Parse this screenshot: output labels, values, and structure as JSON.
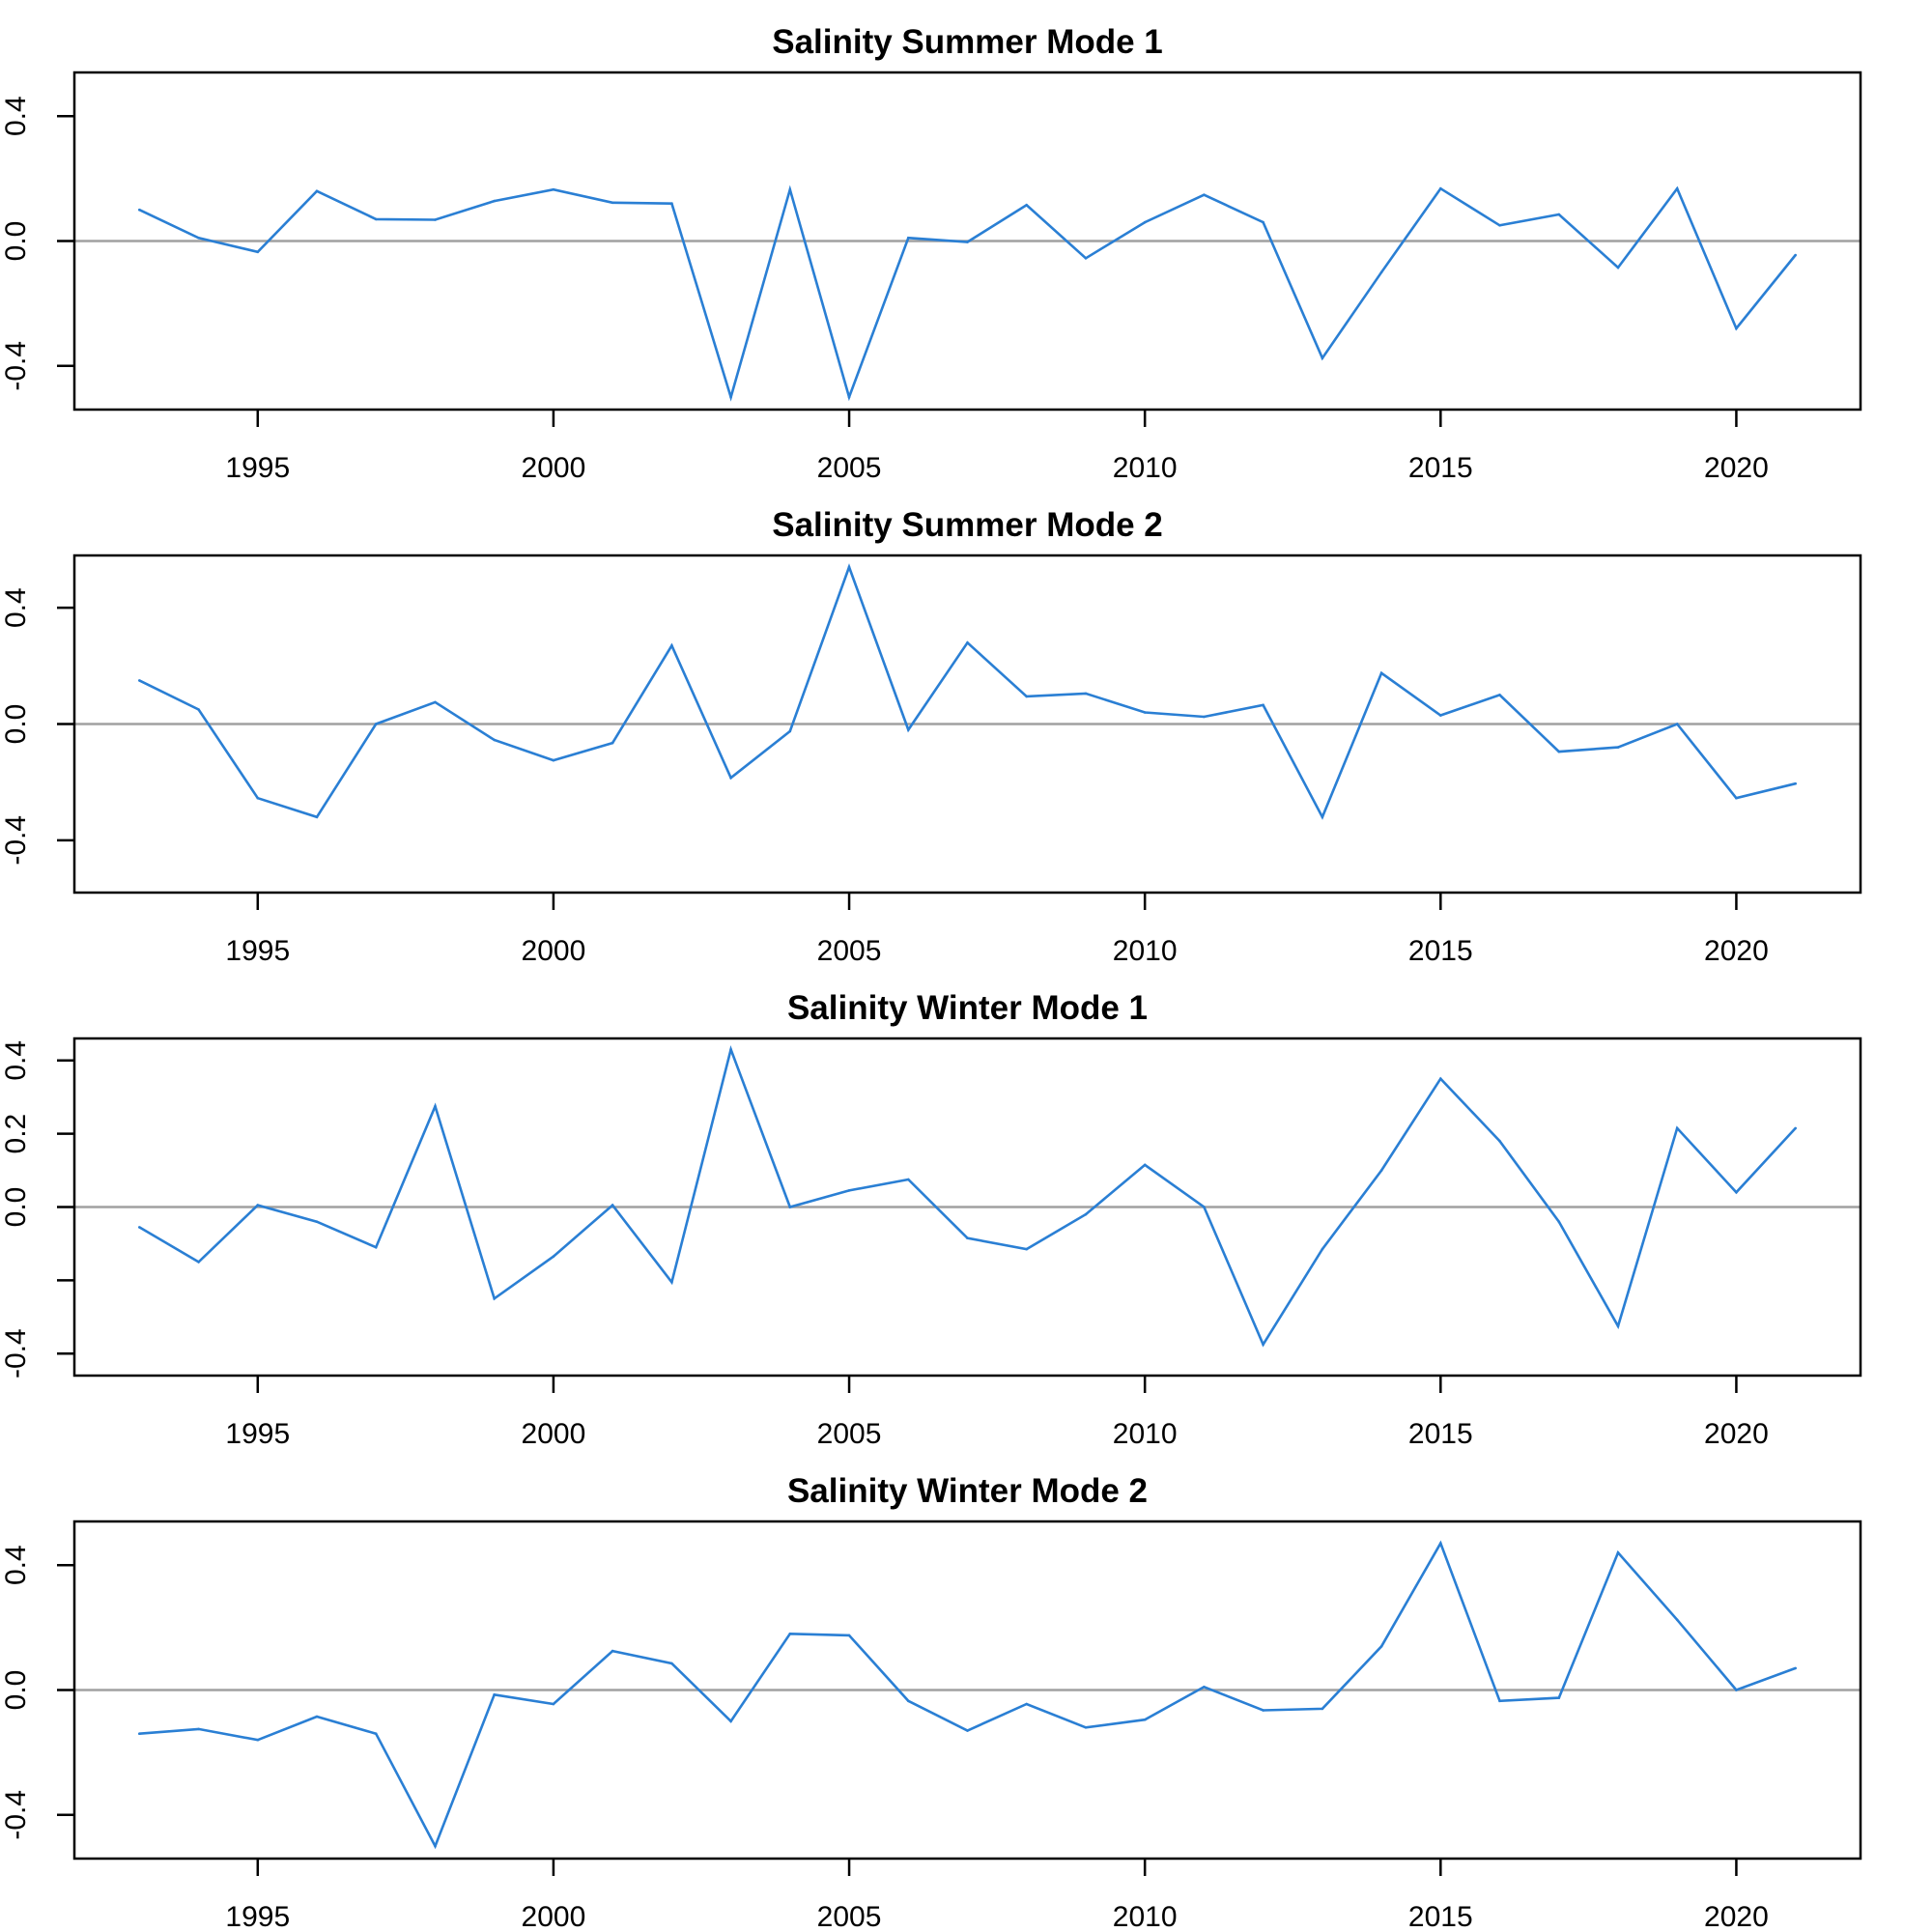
{
  "colors": {
    "line": "#2a7fd4",
    "zero_line": "#a0a0a0",
    "frame": "#000000",
    "text": "#000000",
    "background": "#ffffff"
  },
  "chart_data": [
    {
      "type": "line",
      "title": "Salinity Summer Mode 1",
      "xlabel": "",
      "ylabel": "",
      "xlim": [
        1991.9,
        2022.1
      ],
      "ylim": [
        -0.54,
        0.54
      ],
      "x_ticks": [
        1995,
        2000,
        2005,
        2010,
        2015,
        2020
      ],
      "y_ticks": [
        -0.4,
        0.0,
        0.4
      ],
      "y_tick_labels": [
        "-0.4",
        "0.0",
        "0.4"
      ],
      "reference_line": 0,
      "grid": false,
      "legend": "none",
      "x": [
        1993,
        1994,
        1995,
        1996,
        1997,
        1998,
        1999,
        2000,
        2001,
        2002,
        2003,
        2004,
        2005,
        2006,
        2007,
        2008,
        2009,
        2010,
        2011,
        2012,
        2013,
        2014,
        2015,
        2016,
        2017,
        2018,
        2019,
        2020,
        2021
      ],
      "series": [
        {
          "values": [
            0.1,
            0.01,
            -0.035,
            0.16,
            0.07,
            0.068,
            0.128,
            0.165,
            0.123,
            0.12,
            -0.5,
            0.165,
            -0.5,
            0.01,
            -0.003,
            0.115,
            -0.055,
            0.06,
            0.148,
            0.06,
            -0.375,
            -0.1,
            0.168,
            0.05,
            0.085,
            -0.085,
            0.168,
            -0.28,
            -0.045
          ]
        }
      ]
    },
    {
      "type": "line",
      "title": "Salinity Summer Mode 2",
      "xlabel": "",
      "ylabel": "",
      "xlim": [
        1991.9,
        2022.1
      ],
      "ylim": [
        -0.58,
        0.58
      ],
      "x_ticks": [
        1995,
        2000,
        2005,
        2010,
        2015,
        2020
      ],
      "y_ticks": [
        -0.4,
        0.0,
        0.4
      ],
      "y_tick_labels": [
        "-0.4",
        "0.0",
        "0.4"
      ],
      "reference_line": 0,
      "grid": false,
      "legend": "none",
      "x": [
        1993,
        1994,
        1995,
        1996,
        1997,
        1998,
        1999,
        2000,
        2001,
        2002,
        2003,
        2004,
        2005,
        2006,
        2007,
        2008,
        2009,
        2010,
        2011,
        2012,
        2013,
        2014,
        2015,
        2016,
        2017,
        2018,
        2019,
        2020,
        2021
      ],
      "series": [
        {
          "values": [
            0.15,
            0.05,
            -0.255,
            -0.32,
            0.0,
            0.075,
            -0.055,
            -0.125,
            -0.065,
            0.27,
            -0.185,
            -0.025,
            0.54,
            -0.02,
            0.28,
            0.095,
            0.105,
            0.04,
            0.025,
            0.065,
            -0.32,
            0.175,
            0.03,
            0.1,
            -0.095,
            -0.08,
            0.0,
            -0.255,
            -0.205
          ]
        }
      ]
    },
    {
      "type": "line",
      "title": "Salinity Winter Mode 1",
      "xlabel": "",
      "ylabel": "",
      "xlim": [
        1991.9,
        2022.1
      ],
      "ylim": [
        -0.46,
        0.46
      ],
      "x_ticks": [
        1995,
        2000,
        2005,
        2010,
        2015,
        2020
      ],
      "y_ticks": [
        -0.4,
        -0.2,
        0.0,
        0.2,
        0.4
      ],
      "y_tick_labels": [
        "-0.4",
        "",
        "0.0",
        "0.2",
        "0.4"
      ],
      "reference_line": 0,
      "grid": false,
      "legend": "none",
      "x": [
        1993,
        1994,
        1995,
        1996,
        1997,
        1998,
        1999,
        2000,
        2001,
        2002,
        2003,
        2004,
        2005,
        2006,
        2007,
        2008,
        2009,
        2010,
        2011,
        2012,
        2013,
        2014,
        2015,
        2016,
        2017,
        2018,
        2019,
        2020,
        2021
      ],
      "series": [
        {
          "values": [
            -0.055,
            -0.15,
            0.005,
            -0.04,
            -0.11,
            0.275,
            -0.25,
            -0.135,
            0.005,
            -0.205,
            0.43,
            0.0,
            0.045,
            0.075,
            -0.085,
            -0.115,
            -0.02,
            0.115,
            0.0,
            -0.375,
            -0.115,
            0.1,
            0.35,
            0.18,
            -0.04,
            -0.325,
            0.215,
            0.04,
            0.215
          ]
        }
      ]
    },
    {
      "type": "line",
      "title": "Salinity Winter Mode 2",
      "xlabel": "",
      "ylabel": "",
      "xlim": [
        1991.9,
        2022.1
      ],
      "ylim": [
        -0.54,
        0.54
      ],
      "x_ticks": [
        1995,
        2000,
        2005,
        2010,
        2015,
        2020
      ],
      "y_ticks": [
        -0.4,
        0.0,
        0.4
      ],
      "y_tick_labels": [
        "-0.4",
        "0.0",
        "0.4"
      ],
      "reference_line": 0,
      "grid": false,
      "legend": "none",
      "x": [
        1993,
        1994,
        1995,
        1996,
        1997,
        1998,
        1999,
        2000,
        2001,
        2002,
        2003,
        2004,
        2005,
        2006,
        2007,
        2008,
        2009,
        2010,
        2011,
        2012,
        2013,
        2014,
        2015,
        2016,
        2017,
        2018,
        2019,
        2020,
        2021
      ],
      "series": [
        {
          "values": [
            -0.14,
            -0.125,
            -0.16,
            -0.085,
            -0.14,
            -0.5,
            -0.015,
            -0.045,
            0.125,
            0.085,
            -0.1,
            0.18,
            0.175,
            -0.035,
            -0.13,
            -0.045,
            -0.12,
            -0.095,
            0.01,
            -0.065,
            -0.06,
            0.14,
            0.47,
            -0.035,
            -0.025,
            0.44,
            0.225,
            0.0,
            0.07
          ]
        }
      ]
    }
  ]
}
